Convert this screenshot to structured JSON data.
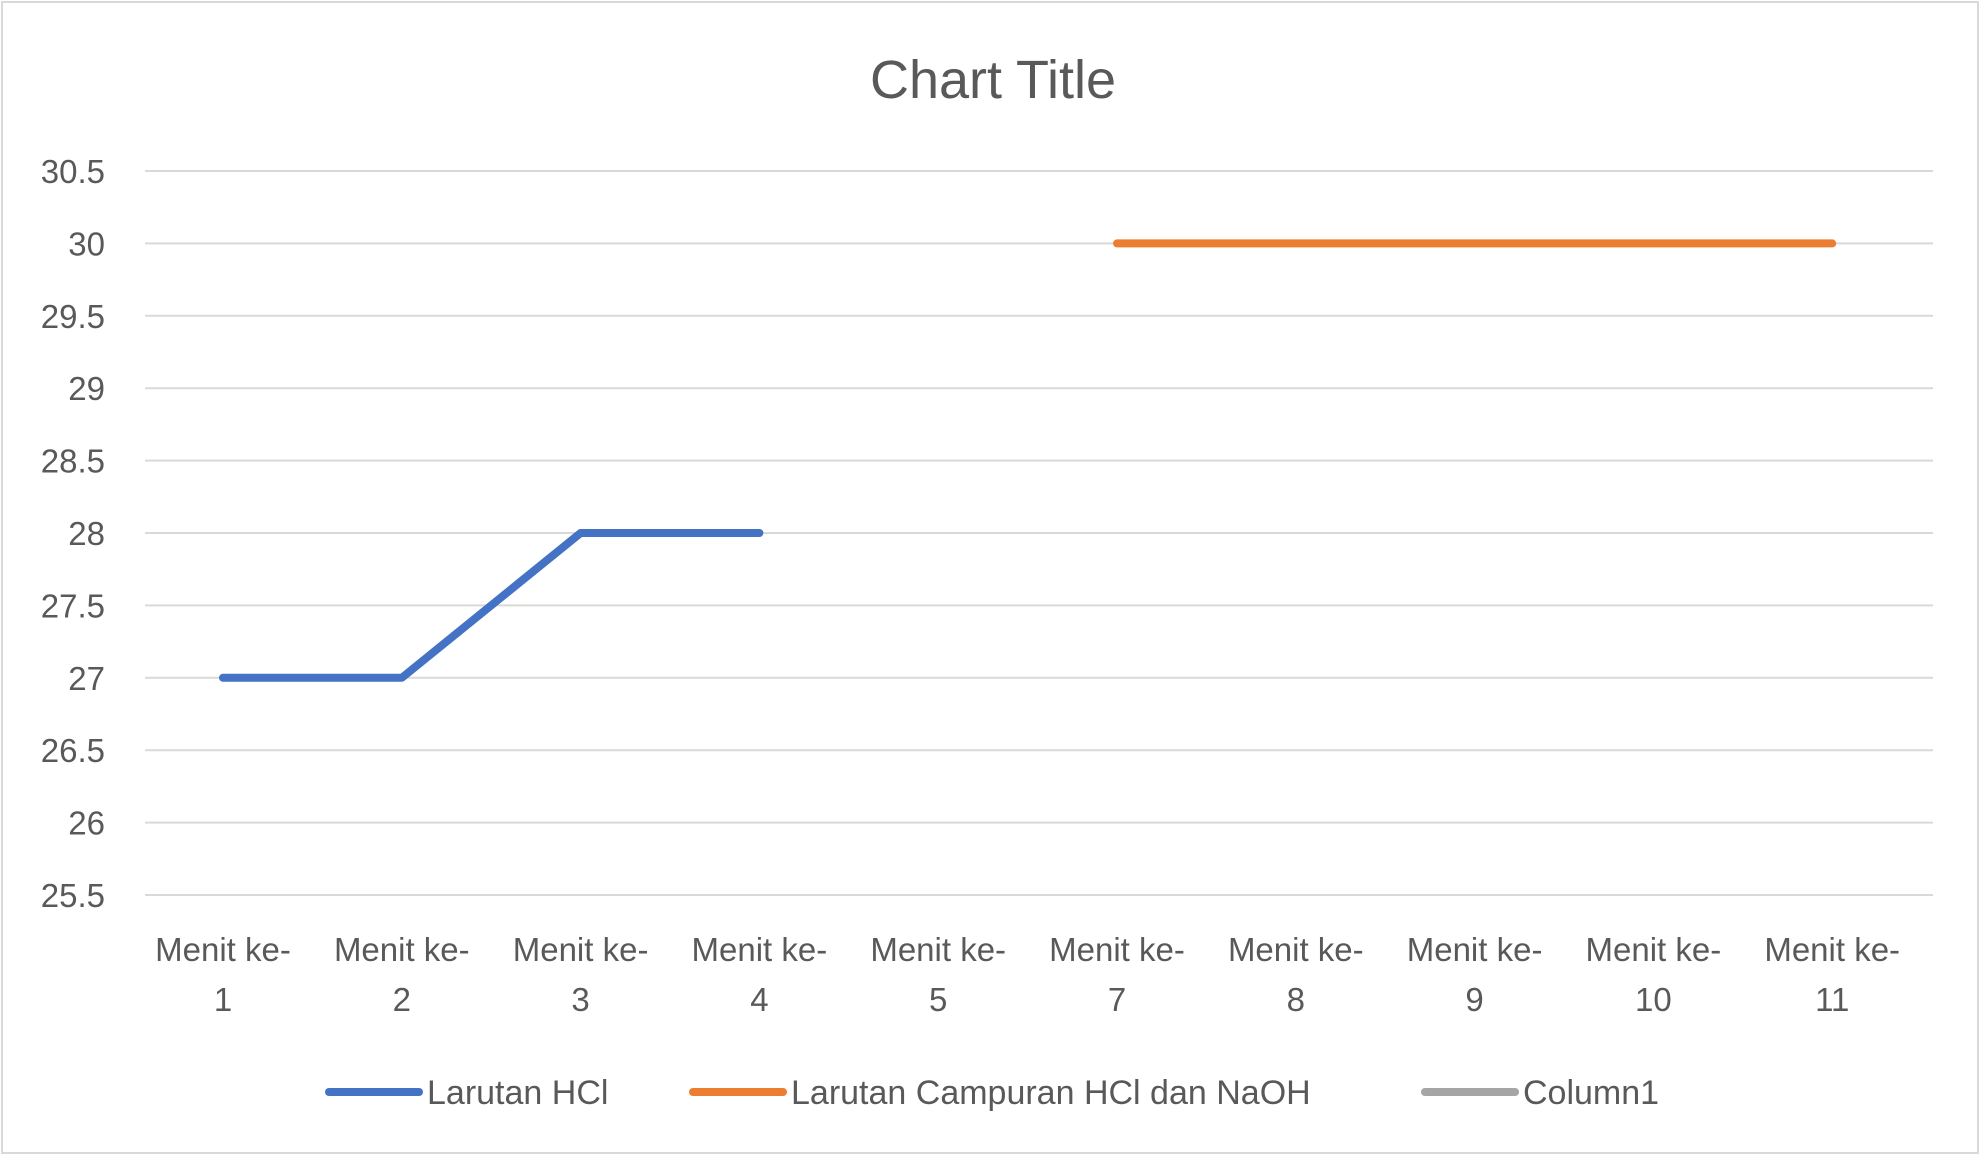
{
  "chart_data": {
    "type": "line",
    "title": "Chart Title",
    "xlabel": "",
    "ylabel": "",
    "categories": [
      [
        "Menit ke-",
        "1"
      ],
      [
        "Menit ke-",
        "2"
      ],
      [
        "Menit ke-",
        "3"
      ],
      [
        "Menit ke-",
        "4"
      ],
      [
        "Menit ke-",
        "5"
      ],
      [
        "Menit ke-",
        "7"
      ],
      [
        "Menit ke-",
        "8"
      ],
      [
        "Menit ke-",
        "9"
      ],
      [
        "Menit ke-",
        "10"
      ],
      [
        "Menit ke-",
        "11"
      ]
    ],
    "ylim": [
      25.5,
      30.5
    ],
    "yticks": [
      "25.5",
      "26",
      "26.5",
      "27",
      "27.5",
      "28",
      "28.5",
      "29",
      "29.5",
      "30",
      "30.5"
    ],
    "grid": true,
    "legend_position": "bottom",
    "series": [
      {
        "name": "Larutan HCl",
        "color": "#4472C4",
        "values": [
          27,
          27,
          28,
          28,
          null,
          null,
          null,
          null,
          null,
          null
        ]
      },
      {
        "name": "Larutan Campuran HCl dan NaOH",
        "color": "#ED7D31",
        "values": [
          null,
          null,
          null,
          null,
          null,
          30,
          30,
          30,
          30,
          30
        ]
      },
      {
        "name": "Column1",
        "color": "#A5A5A5",
        "values": [
          null,
          null,
          null,
          null,
          null,
          null,
          null,
          null,
          null,
          null
        ]
      }
    ]
  }
}
